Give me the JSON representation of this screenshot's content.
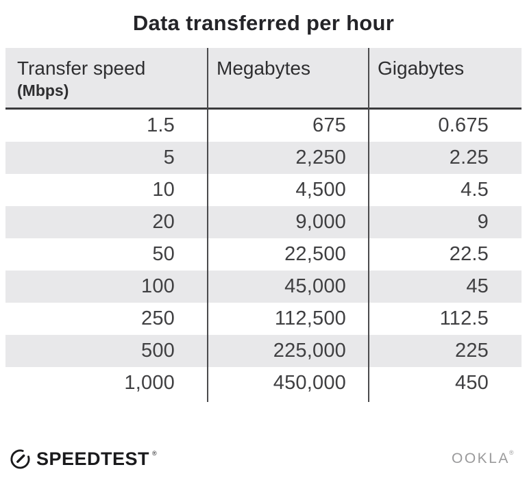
{
  "title": "Data transferred per hour",
  "table": {
    "columns": [
      {
        "label": "Transfer speed",
        "sublabel": "(Mbps)"
      },
      {
        "label": "Megabytes"
      },
      {
        "label": "Gigabytes"
      }
    ],
    "rows": [
      [
        "1.5",
        "675",
        "0.675"
      ],
      [
        "5",
        "2,250",
        "2.25"
      ],
      [
        "10",
        "4,500",
        "4.5"
      ],
      [
        "20",
        "9,000",
        "9"
      ],
      [
        "50",
        "22,500",
        "22.5"
      ],
      [
        "100",
        "45,000",
        "45"
      ],
      [
        "250",
        "112,500",
        "112.5"
      ],
      [
        "500",
        "225,000",
        "225"
      ],
      [
        "1,000",
        "450,000",
        "450"
      ]
    ]
  },
  "footer": {
    "speedtest_label": "SPEEDTEST",
    "speedtest_trademark": "®",
    "ookla_label": "OOKLA",
    "ookla_trademark": "®"
  },
  "colors": {
    "stripe_gray": "#e8e8ea",
    "header_bg": "#e8e8ea",
    "divider": "#4a4a4c",
    "header_border": "#3a3a3c",
    "title_text": "#242428",
    "number_text": "#3f3f41",
    "header_text": "#2e2e30",
    "ookla_gray": "#9a9a9b",
    "logo_black": "#1a1a1c"
  },
  "chart_data": {
    "type": "table",
    "title": "Data transferred per hour",
    "columns": [
      "Transfer speed (Mbps)",
      "Megabytes",
      "Gigabytes"
    ],
    "rows": [
      [
        1.5,
        675,
        0.675
      ],
      [
        5,
        2250,
        2.25
      ],
      [
        10,
        4500,
        4.5
      ],
      [
        20,
        9000,
        9
      ],
      [
        50,
        22500,
        22.5
      ],
      [
        100,
        45000,
        45
      ],
      [
        250,
        112500,
        112.5
      ],
      [
        500,
        225000,
        225
      ],
      [
        1000,
        450000,
        450
      ]
    ]
  }
}
